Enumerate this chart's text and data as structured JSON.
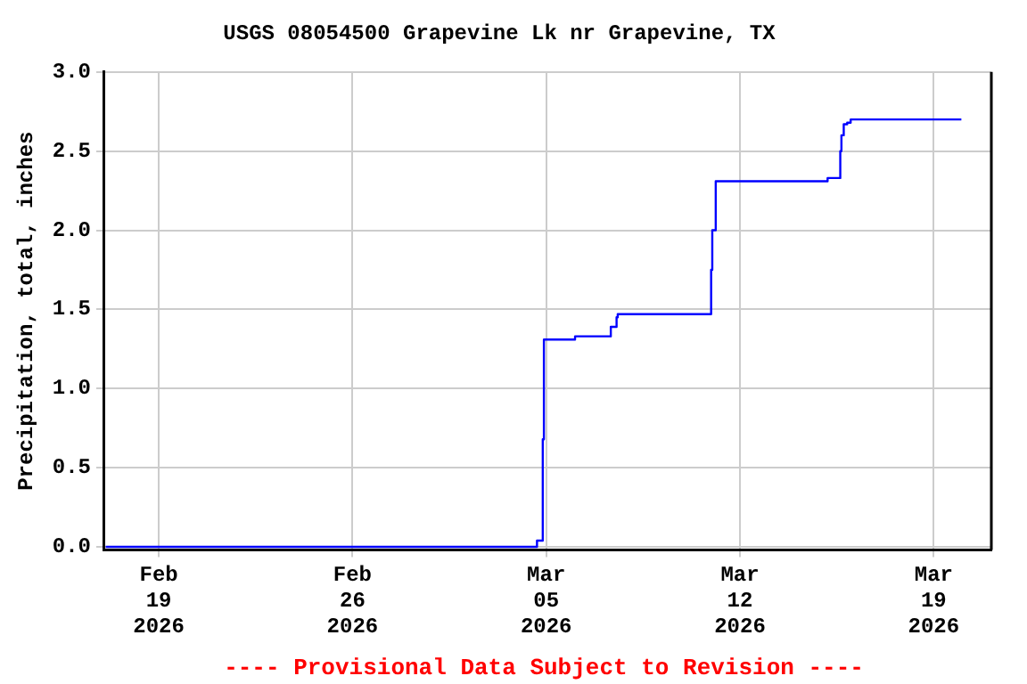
{
  "chart_data": {
    "type": "step",
    "title": "USGS 08054500 Grapevine Lk nr Grapevine, TX",
    "ylabel": "Precipitation, total, inches",
    "annotations": [
      "---- Provisional Data Subject to Revision ----"
    ],
    "series": [
      {
        "color": "#0000ff",
        "x": [
          "2026-02-17T02:00",
          "2026-03-04T16:00",
          "2026-03-04T21:00",
          "2026-03-04T22:00",
          "2026-03-06T01:00",
          "2026-03-07T08:00",
          "2026-03-07T13:00",
          "2026-03-07T14:00",
          "2026-03-10T23:00",
          "2026-03-11T00:00",
          "2026-03-11T03:00",
          "2026-03-15T04:00",
          "2026-03-15T15:00",
          "2026-03-15T16:00",
          "2026-03-15T18:00",
          "2026-03-15T21:00",
          "2026-03-16T00:00",
          "2026-03-20T00:00"
        ],
        "values": [
          0,
          0.04,
          0.68,
          1.31,
          1.33,
          1.39,
          1.45,
          1.47,
          1.75,
          2.0,
          2.31,
          2.33,
          2.5,
          2.6,
          2.67,
          2.68,
          2.7,
          2.7
        ]
      }
    ],
    "xlim": [
      "2026-02-17T00:00",
      "2026-03-21T02:00"
    ],
    "xticks": [
      {
        "value": "2026-02-19",
        "label": "Feb 19 2026"
      },
      {
        "value": "2026-02-26",
        "label": "Feb 26 2026"
      },
      {
        "value": "2026-03-05",
        "label": "Mar 05 2026"
      },
      {
        "value": "2026-03-12",
        "label": "Mar 12 2026"
      },
      {
        "value": "2026-03-19",
        "label": "Mar 19 2026"
      }
    ],
    "ylim": [
      -0.02,
      3
    ],
    "yticks": [
      {
        "value": 0,
        "label": "0.0"
      },
      {
        "value": 0.5,
        "label": "0.5"
      },
      {
        "value": 1,
        "label": "1.0"
      },
      {
        "value": 1.5,
        "label": "1.5"
      },
      {
        "value": 2,
        "label": "2.0"
      },
      {
        "value": 2.5,
        "label": "2.5"
      },
      {
        "value": 3,
        "label": "3.0"
      }
    ],
    "grid": true,
    "legend": false,
    "marker": "none",
    "line_style": "solid"
  }
}
